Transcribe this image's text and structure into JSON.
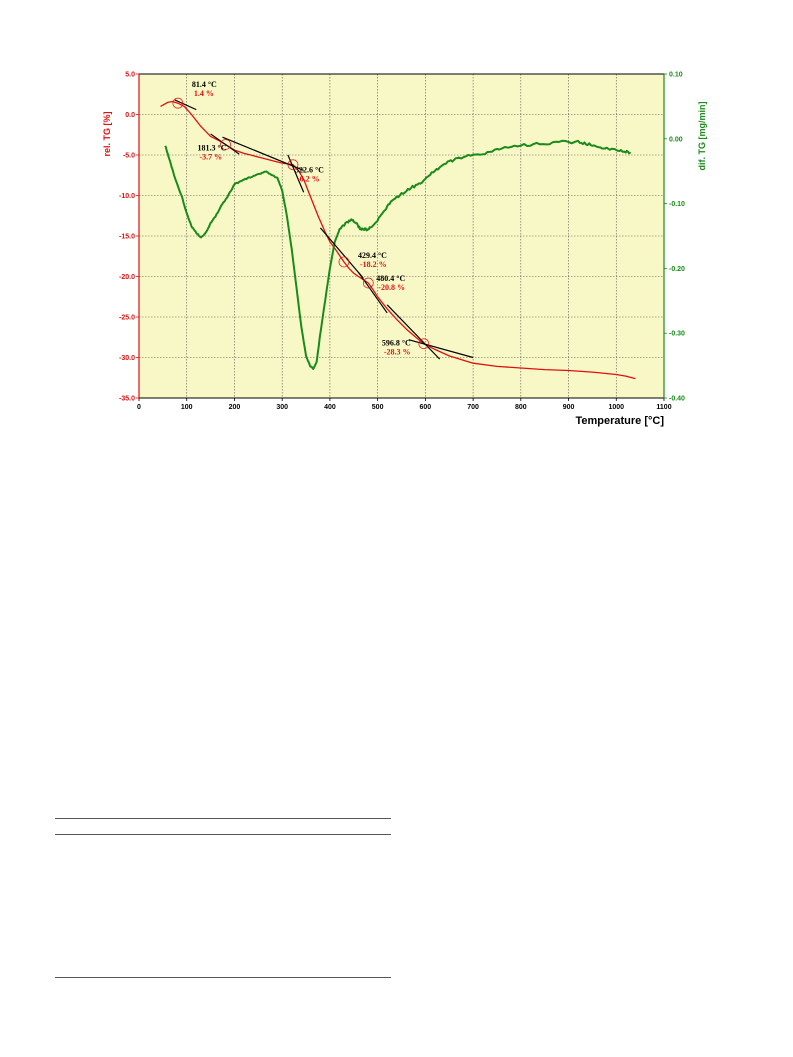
{
  "chart_data": {
    "type": "line",
    "title": "",
    "xlabel": "Temperature  [°C]",
    "ylabel_left": "rel. TG  [%]",
    "ylabel_right": "dif. TG  [mg/min]",
    "xlim": [
      0,
      1100
    ],
    "ylim_left": [
      -35,
      5
    ],
    "ylim_right": [
      -0.4,
      0.1
    ],
    "x_ticks": [
      "0",
      "100",
      "200",
      "300",
      "400",
      "500",
      "600",
      "700",
      "800",
      "900",
      "1000",
      "1100"
    ],
    "y_left_ticks": [
      "5.0",
      "0.0",
      "-5.0",
      "-10.0",
      "-15.0",
      "-20.0",
      "-25.0",
      "-30.0",
      "-35.0"
    ],
    "y_right_ticks": [
      "0.10",
      "0.00",
      "-0.10",
      "-0.20",
      "-0.30",
      "-0.40"
    ],
    "grid": true,
    "plot_background": "#f8f8c6",
    "series": [
      {
        "axis": "left",
        "color": "#e01010",
        "x": [
          45,
          60,
          70,
          81.4,
          95,
          110,
          130,
          150,
          170,
          181.3,
          200,
          220,
          240,
          260,
          280,
          300,
          322.6,
          335,
          345,
          355,
          365,
          375,
          390,
          400,
          410,
          420,
          429.4,
          440,
          450,
          460,
          470,
          480.4,
          490,
          500,
          520,
          540,
          560,
          580,
          596.8,
          620,
          650,
          700,
          750,
          800,
          850,
          900,
          950,
          1000,
          1020,
          1040
        ],
        "values": [
          1.0,
          1.5,
          1.6,
          1.4,
          1.0,
          0.0,
          -1.5,
          -2.7,
          -3.3,
          -3.7,
          -4.4,
          -4.8,
          -5.1,
          -5.4,
          -5.7,
          -6.0,
          -6.2,
          -7.0,
          -8.0,
          -9.5,
          -11.0,
          -12.5,
          -14.5,
          -15.7,
          -16.5,
          -17.4,
          -18.2,
          -19.0,
          -19.6,
          -20.0,
          -20.4,
          -20.8,
          -21.6,
          -22.5,
          -24.0,
          -25.3,
          -26.5,
          -27.5,
          -28.3,
          -29.0,
          -29.8,
          -30.7,
          -31.1,
          -31.3,
          -31.5,
          -31.6,
          -31.8,
          -32.1,
          -32.3,
          -32.6
        ]
      },
      {
        "axis": "right",
        "color": "#1a8a1a",
        "x": [
          55,
          65,
          75,
          90,
          100,
          110,
          120,
          130,
          140,
          150,
          160,
          175,
          185,
          200,
          215,
          230,
          250,
          265,
          275,
          290,
          300,
          310,
          320,
          330,
          340,
          350,
          358,
          365,
          372,
          380,
          390,
          400,
          410,
          420,
          435,
          445,
          455,
          465,
          475,
          485,
          500,
          515,
          530,
          550,
          570,
          590,
          610,
          630,
          650,
          670,
          700,
          730,
          760,
          800,
          840,
          880,
          920,
          940,
          960,
          980,
          1000,
          1020,
          1030
        ],
        "values": [
          -0.01,
          -0.035,
          -0.06,
          -0.09,
          -0.115,
          -0.135,
          -0.145,
          -0.152,
          -0.145,
          -0.13,
          -0.12,
          -0.1,
          -0.09,
          -0.07,
          -0.065,
          -0.06,
          -0.055,
          -0.05,
          -0.055,
          -0.06,
          -0.08,
          -0.12,
          -0.17,
          -0.23,
          -0.29,
          -0.335,
          -0.35,
          -0.355,
          -0.345,
          -0.3,
          -0.25,
          -0.2,
          -0.16,
          -0.14,
          -0.13,
          -0.125,
          -0.13,
          -0.14,
          -0.14,
          -0.137,
          -0.125,
          -0.11,
          -0.095,
          -0.085,
          -0.075,
          -0.07,
          -0.055,
          -0.045,
          -0.035,
          -0.03,
          -0.025,
          -0.022,
          -0.015,
          -0.01,
          -0.008,
          -0.005,
          -0.005,
          -0.008,
          -0.012,
          -0.015,
          -0.018,
          -0.02,
          -0.022
        ]
      }
    ],
    "annotations": [
      {
        "temp": "81.4 °C",
        "pct": "1.4 %",
        "x": 81.4,
        "y": 1.4
      },
      {
        "temp": "181.3 °C",
        "pct": "-3.7 %",
        "x": 181.3,
        "y": -3.7
      },
      {
        "temp": "322.6 °C",
        "pct": "-6.2 %",
        "x": 322.6,
        "y": -6.2
      },
      {
        "temp": "429.4 °C",
        "pct": "-18.2 %",
        "x": 429.4,
        "y": -18.2
      },
      {
        "temp": "480.4 °C",
        "pct": "-20.8 %",
        "x": 480.4,
        "y": -20.8
      },
      {
        "temp": "596.8 °C",
        "pct": "-28.3 %",
        "x": 596.8,
        "y": -28.3
      }
    ],
    "tangent_lines": [
      {
        "x": [
          75,
          120
        ],
        "y": [
          1.8,
          0.6
        ]
      },
      {
        "x": [
          150,
          210
        ],
        "y": [
          -2.4,
          -4.9
        ]
      },
      {
        "x": [
          175,
          345
        ],
        "y": [
          -2.8,
          -6.9
        ]
      },
      {
        "x": [
          312,
          345
        ],
        "y": [
          -5.0,
          -9.6
        ]
      },
      {
        "x": [
          380,
          470
        ],
        "y": [
          -14.0,
          -20.2
        ]
      },
      {
        "x": [
          460,
          520
        ],
        "y": [
          -19.5,
          -24.5
        ]
      },
      {
        "x": [
          520,
          630
        ],
        "y": [
          -23.5,
          -30.2
        ]
      },
      {
        "x": [
          565,
          700
        ],
        "y": [
          -27.8,
          -30.0
        ]
      }
    ]
  }
}
